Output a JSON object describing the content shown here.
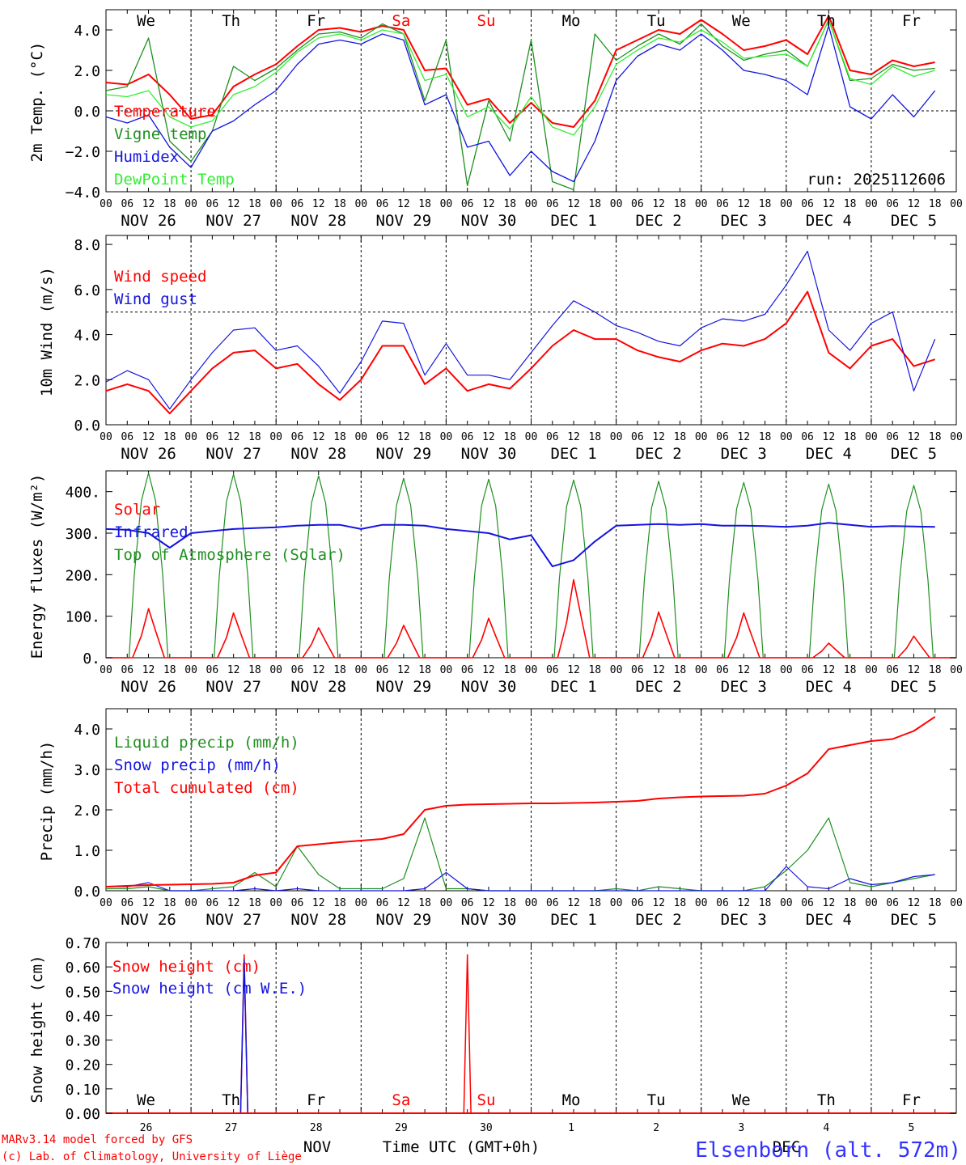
{
  "colors": {
    "red": "#ff0000",
    "green": "#1f8f1f",
    "blue": "#1414e0",
    "lightgreen": "#33ee33",
    "black": "#000000",
    "credit": "#ff0000",
    "station": "#3333ff"
  },
  "days_of_week": [
    "We",
    "Th",
    "Fr",
    "Sa",
    "Su",
    "Mo",
    "Tu",
    "We",
    "Th",
    "Fr"
  ],
  "weekend_days": [
    "Sa",
    "Su"
  ],
  "date_labels": [
    "NOV 26",
    "NOV 27",
    "NOV 28",
    "NOV 29",
    "NOV 30",
    "DEC  1",
    "DEC  2",
    "DEC  3",
    "DEC  4",
    "DEC  5"
  ],
  "hour_labels": [
    "00",
    "06",
    "12",
    "18"
  ],
  "hour_end_label": "00",
  "day_numbers": [
    "26",
    "27",
    "28",
    "29",
    "30",
    "1",
    "2",
    "3",
    "4",
    "5"
  ],
  "month_labels": [
    "NOV",
    "DEC"
  ],
  "footer": {
    "credit_line1": "MARv3.14 model forced by GFS",
    "credit_line2": "(c) Lab. of Climatology, University of Liège",
    "axis_title": "Time UTC (GMT+0h)",
    "station": "Elsenborn (alt. 572m)"
  },
  "chart_data": [
    {
      "type": "line",
      "title": "2m Temp. (°C)",
      "ylabel": "2m Temp. (°C)",
      "ylim": [
        -4,
        5
      ],
      "yticks": [
        "4.0",
        "2.0",
        "0.0",
        "−2.0",
        "−4.0"
      ],
      "ref_line": 0,
      "run_label": "run: 2025112606",
      "x_hours": [
        0,
        6,
        12,
        18,
        24,
        30,
        36,
        42,
        48,
        54,
        60,
        66,
        72,
        78,
        84,
        90,
        96,
        102,
        108,
        114,
        120,
        126,
        132,
        138,
        144,
        150,
        156,
        162,
        168,
        174,
        180,
        186,
        192,
        198,
        204,
        210,
        216,
        222,
        228,
        234
      ],
      "series": [
        {
          "name": "Temperature",
          "color": "#ff0000",
          "values": [
            1.4,
            1.3,
            1.8,
            0.8,
            -0.4,
            -0.2,
            1.2,
            1.8,
            2.3,
            3.2,
            4.0,
            4.1,
            3.9,
            4.2,
            4.0,
            2.0,
            2.1,
            0.3,
            0.6,
            -0.6,
            0.4,
            -0.6,
            -0.8,
            0.5,
            3.0,
            3.5,
            4.0,
            3.8,
            4.5,
            3.8,
            3.0,
            3.2,
            3.5,
            2.8,
            4.7,
            2.0,
            1.8,
            2.5,
            2.2,
            2.4
          ]
        },
        {
          "name": "Vigne temp",
          "color": "#1f8f1f",
          "values": [
            1.0,
            1.2,
            3.6,
            -1.5,
            -2.5,
            -1.0,
            2.2,
            1.5,
            2.1,
            3.0,
            3.8,
            3.9,
            3.6,
            4.3,
            3.8,
            0.5,
            3.5,
            -3.7,
            0.5,
            -1.5,
            3.5,
            -3.5,
            -3.9,
            3.8,
            2.5,
            3.2,
            3.8,
            3.3,
            4.3,
            3.2,
            2.5,
            2.8,
            3.0,
            2.2,
            4.5,
            1.5,
            1.6,
            2.3,
            2.0,
            2.1
          ]
        },
        {
          "name": "Humidex",
          "color": "#1414e0",
          "values": [
            -0.3,
            -0.6,
            -0.2,
            -1.8,
            -2.8,
            -1.0,
            -0.5,
            0.3,
            1.0,
            2.3,
            3.3,
            3.5,
            3.3,
            3.8,
            3.5,
            0.3,
            0.8,
            -1.8,
            -1.5,
            -3.2,
            -2.0,
            -3.0,
            -3.5,
            -1.5,
            1.5,
            2.7,
            3.3,
            3.0,
            3.8,
            3.0,
            2.0,
            1.8,
            1.5,
            0.8,
            4.2,
            0.2,
            -0.4,
            0.8,
            -0.3,
            1.0
          ]
        },
        {
          "name": "DewPoint Temp",
          "color": "#33ee33",
          "values": [
            0.8,
            0.7,
            1.0,
            -0.3,
            -0.8,
            -0.5,
            0.8,
            1.2,
            1.9,
            2.9,
            3.6,
            3.8,
            3.5,
            4.0,
            3.8,
            1.5,
            1.8,
            -0.3,
            0.2,
            -0.9,
            0.7,
            -0.8,
            -1.2,
            0.2,
            2.3,
            3.0,
            3.6,
            3.4,
            4.0,
            3.4,
            2.6,
            2.7,
            2.8,
            2.2,
            4.5,
            1.6,
            1.3,
            2.2,
            1.7,
            2.0
          ]
        }
      ]
    },
    {
      "type": "line",
      "title": "10m Wind (m/s)",
      "ylabel": "10m Wind (m/s)",
      "ylim": [
        0,
        8.4
      ],
      "yticks": [
        "8.0",
        "6.0",
        "4.0",
        "2.0",
        "0.0"
      ],
      "ref_line": 5,
      "x_hours": [
        0,
        6,
        12,
        18,
        24,
        30,
        36,
        42,
        48,
        54,
        60,
        66,
        72,
        78,
        84,
        90,
        96,
        102,
        108,
        114,
        120,
        126,
        132,
        138,
        144,
        150,
        156,
        162,
        168,
        174,
        180,
        186,
        192,
        198,
        204,
        210,
        216,
        222,
        228,
        234
      ],
      "series": [
        {
          "name": "Wind speed",
          "color": "#ff0000",
          "values": [
            1.5,
            1.8,
            1.5,
            0.5,
            1.5,
            2.5,
            3.2,
            3.3,
            2.5,
            2.7,
            1.8,
            1.1,
            2.0,
            3.5,
            3.5,
            1.8,
            2.5,
            1.5,
            1.8,
            1.6,
            2.5,
            3.5,
            4.2,
            3.8,
            3.8,
            3.3,
            3.0,
            2.8,
            3.3,
            3.6,
            3.5,
            3.8,
            4.5,
            5.9,
            3.2,
            2.5,
            3.5,
            3.8,
            2.6,
            2.9
          ]
        },
        {
          "name": "Wind gust",
          "color": "#1414e0",
          "values": [
            1.9,
            2.4,
            2.0,
            0.7,
            2.0,
            3.2,
            4.2,
            4.3,
            3.3,
            3.5,
            2.6,
            1.4,
            2.8,
            4.6,
            4.5,
            2.2,
            3.6,
            2.2,
            2.2,
            2.0,
            3.2,
            4.4,
            5.5,
            5.0,
            4.4,
            4.1,
            3.7,
            3.5,
            4.3,
            4.7,
            4.6,
            4.9,
            6.2,
            7.7,
            4.2,
            3.3,
            4.5,
            5.0,
            1.5,
            3.8
          ]
        }
      ]
    },
    {
      "type": "line",
      "title": "Energy fluxes (W/m²)",
      "ylabel": "Energy fluxes (W/m²)",
      "ylim": [
        0,
        450
      ],
      "yticks": [
        "400.",
        "300.",
        "200.",
        "100.",
        "0."
      ],
      "daily_peaks": {
        "solar": [
          118,
          108,
          72,
          78,
          95,
          188,
          110,
          108,
          35,
          52
        ],
        "toa": [
          445,
          442,
          438,
          432,
          430,
          428,
          425,
          422,
          418,
          415
        ]
      },
      "infrared_x": [
        0,
        6,
        12,
        18,
        24,
        30,
        36,
        42,
        48,
        54,
        60,
        66,
        72,
        78,
        84,
        90,
        96,
        102,
        108,
        114,
        120,
        126,
        132,
        138,
        144,
        150,
        156,
        162,
        168,
        174,
        180,
        186,
        192,
        198,
        204,
        210,
        216,
        222,
        228,
        234
      ],
      "series": [
        {
          "name": "Solar",
          "color": "#ff0000"
        },
        {
          "name": "Infrared",
          "color": "#1414e0",
          "values": [
            310,
            308,
            300,
            265,
            300,
            305,
            310,
            312,
            314,
            318,
            320,
            320,
            310,
            320,
            320,
            318,
            310,
            305,
            300,
            285,
            295,
            220,
            235,
            280,
            318,
            320,
            322,
            320,
            322,
            318,
            318,
            317,
            315,
            318,
            325,
            320,
            315,
            317,
            316,
            315
          ]
        },
        {
          "name": "Top of Atmosphere (Solar)",
          "color": "#1f8f1f"
        }
      ]
    },
    {
      "type": "line",
      "title": "Precip (mm/h)",
      "ylabel": "Precip (mm/h)",
      "ylim": [
        0,
        4.5
      ],
      "yticks": [
        "4.0",
        "3.0",
        "2.0",
        "1.0",
        "0.0"
      ],
      "x_hours": [
        0,
        6,
        12,
        18,
        24,
        30,
        36,
        42,
        48,
        54,
        60,
        66,
        72,
        78,
        84,
        90,
        96,
        102,
        108,
        114,
        120,
        126,
        132,
        138,
        144,
        150,
        156,
        162,
        168,
        174,
        180,
        186,
        192,
        198,
        204,
        210,
        216,
        222,
        228,
        234
      ],
      "series": [
        {
          "name": "Liquid precip (mm/h)",
          "color": "#1f8f1f",
          "values": [
            0.05,
            0.05,
            0.1,
            0.0,
            0.0,
            0.05,
            0.1,
            0.45,
            0.1,
            1.1,
            0.4,
            0.05,
            0.05,
            0.05,
            0.3,
            1.8,
            0.05,
            0.05,
            0.0,
            0.0,
            0.0,
            0.0,
            0.0,
            0.0,
            0.05,
            0.0,
            0.1,
            0.05,
            0.0,
            0.0,
            0.0,
            0.1,
            0.5,
            1.0,
            1.8,
            0.2,
            0.1,
            0.2,
            0.3,
            0.4
          ]
        },
        {
          "name": "Snow precip (mm/h)",
          "color": "#1414e0",
          "values": [
            0.1,
            0.1,
            0.2,
            0.0,
            0.0,
            0.0,
            0.0,
            0.05,
            0.0,
            0.05,
            0.0,
            0.0,
            0.0,
            0.0,
            0.0,
            0.05,
            0.45,
            0.05,
            0.0,
            0.0,
            0.0,
            0.0,
            0.0,
            0.0,
            0.0,
            0.0,
            0.0,
            0.0,
            0.0,
            0.0,
            0.0,
            0.0,
            0.6,
            0.1,
            0.05,
            0.3,
            0.15,
            0.2,
            0.35,
            0.4
          ]
        },
        {
          "name": "Total cumulated (cm)",
          "color": "#ff0000",
          "values": [
            0.1,
            0.12,
            0.14,
            0.15,
            0.16,
            0.17,
            0.2,
            0.38,
            0.45,
            1.1,
            1.15,
            1.2,
            1.24,
            1.28,
            1.4,
            2.0,
            2.1,
            2.13,
            2.14,
            2.15,
            2.16,
            2.16,
            2.17,
            2.18,
            2.2,
            2.22,
            2.28,
            2.31,
            2.33,
            2.34,
            2.35,
            2.4,
            2.6,
            2.9,
            3.5,
            3.6,
            3.7,
            3.75,
            3.95,
            4.3
          ]
        }
      ]
    },
    {
      "type": "line",
      "title": "Snow height (cm)",
      "ylabel": "Snow height (cm)",
      "ylim": [
        0,
        0.7
      ],
      "yticks": [
        "0.70",
        "0.60",
        "0.50",
        "0.40",
        "0.30",
        "0.20",
        "0.10",
        "0.00"
      ],
      "series": [
        {
          "name": "Snow height (cm)",
          "color": "#ff0000",
          "spikes": [
            {
              "hour": 39,
              "value": 0.65
            },
            {
              "hour": 102,
              "value": 0.65
            }
          ]
        },
        {
          "name": "Snow height (cm W.E.)",
          "color": "#1414e0",
          "spikes": [
            {
              "hour": 39,
              "value": 0.63
            }
          ]
        }
      ]
    }
  ]
}
